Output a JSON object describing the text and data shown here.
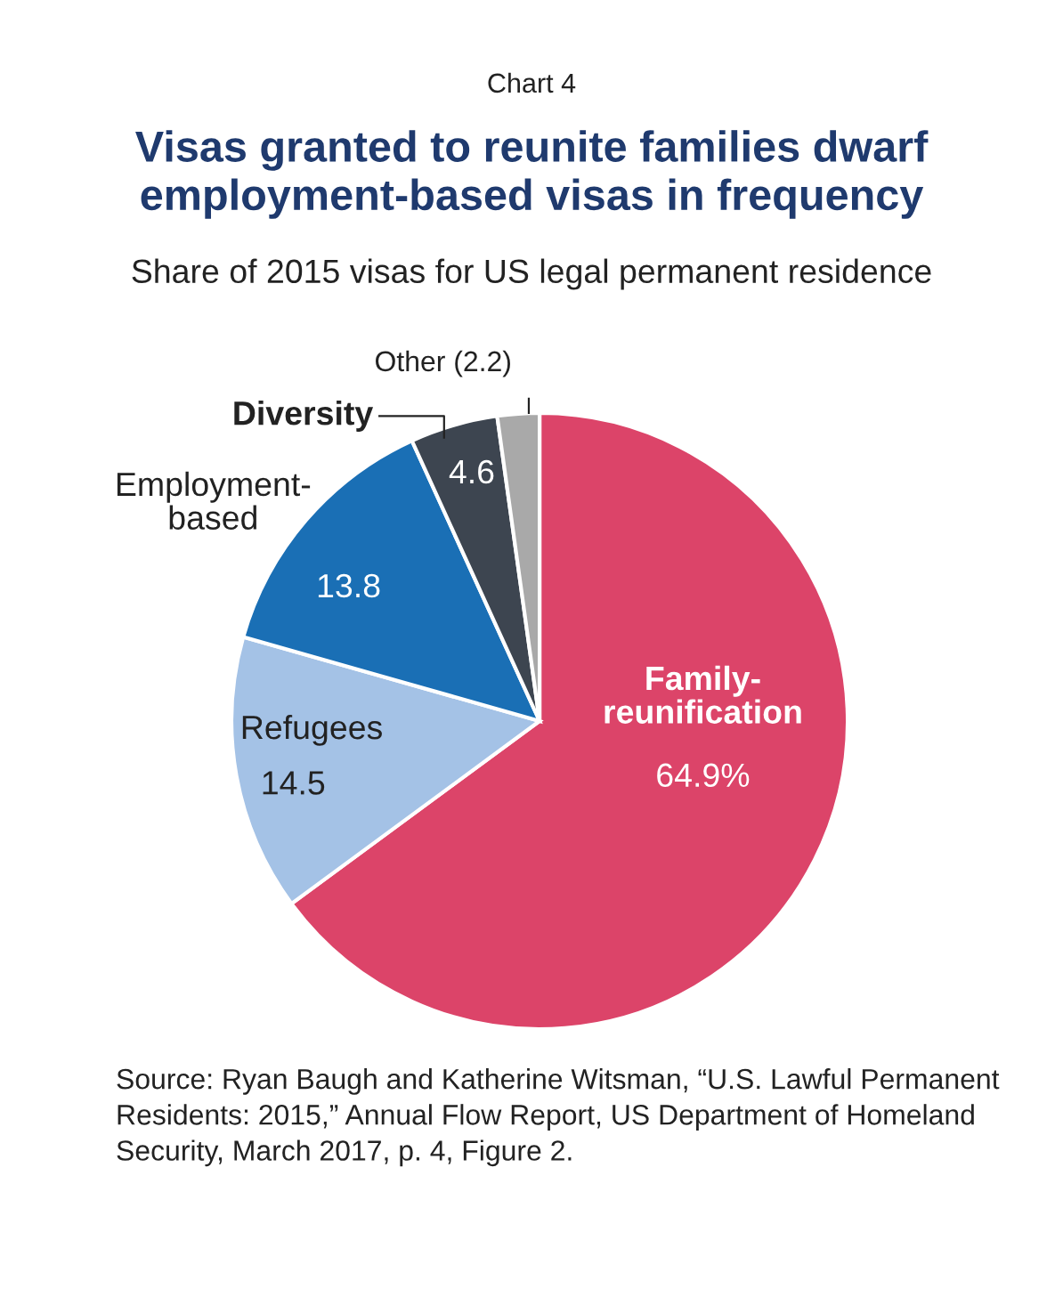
{
  "chart_data": {
    "type": "pie",
    "title": "Visas granted to reunite families dwarf\nemployment-based visas in frequency",
    "subtitle": "Share of 2015 visas for US legal permanent residence",
    "categories": [
      "Family-\nreunification",
      "Refugees",
      "Employment-\nbased",
      "Diversity",
      "Other"
    ],
    "values": [
      64.9,
      14.5,
      13.8,
      4.6,
      2.2
    ],
    "value_labels": [
      "64.9%",
      "14.5",
      "13.8",
      "4.6",
      "(2.2)"
    ],
    "colors": [
      "#dc4469",
      "#a4c2e6",
      "#1a6fb5",
      "#3d4550",
      "#a9a9a9"
    ],
    "annotations": [
      "Chart 4",
      "Source: Ryan Baugh and Katherine Witsman, “U.S. Lawful Permanent Residents: 2015,” Annual Flow Report, US Department of Homeland Security, March 2017, p. 4, Figure 2."
    ]
  }
}
